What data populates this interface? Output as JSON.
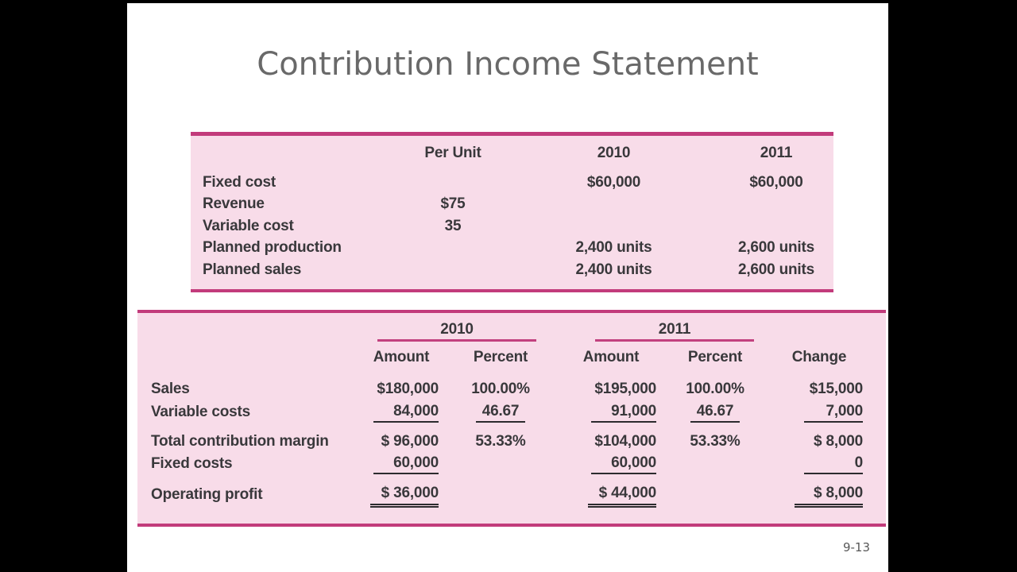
{
  "slide": {
    "title": "Contribution Income Statement",
    "page_number": "9-13"
  },
  "colors": {
    "accent_magenta": "#c23b7b",
    "table_fill": "#f8dce9",
    "table_text": "#39383b",
    "title_gray": "#696969",
    "letterbox": "#000000"
  },
  "table1": {
    "headers": {
      "per_unit": "Per Unit",
      "y2010": "2010",
      "y2011": "2011"
    },
    "rows": [
      {
        "label": "Fixed cost",
        "per_unit": "",
        "y2010": "$60,000",
        "y2011": "$60,000"
      },
      {
        "label": "Revenue",
        "per_unit": "$75",
        "y2010": "",
        "y2011": ""
      },
      {
        "label": "Variable cost",
        "per_unit": "35",
        "y2010": "",
        "y2011": ""
      },
      {
        "label": "Planned production",
        "per_unit": "",
        "y2010": "2,400 units",
        "y2011": "2,600 units"
      },
      {
        "label": "Planned sales",
        "per_unit": "",
        "y2010": "2,400 units",
        "y2011": "2,600 units"
      }
    ]
  },
  "table2": {
    "group_headers": {
      "y2010": "2010",
      "y2011": "2011"
    },
    "column_headers": {
      "amount_2010": "Amount",
      "percent_2010": "Percent",
      "amount_2011": "Amount",
      "percent_2011": "Percent",
      "change": "Change"
    },
    "rows": [
      {
        "label": "Sales",
        "amount_2010": "$180,000",
        "percent_2010": "100.00%",
        "amount_2011": "$195,000",
        "percent_2011": "100.00%",
        "change": "$15,000"
      },
      {
        "label": "Variable costs",
        "amount_2010": "84,000",
        "percent_2010": "46.67",
        "amount_2011": "91,000",
        "percent_2011": "46.67",
        "change": "7,000"
      },
      {
        "label": "Total contribution margin",
        "amount_2010": "$ 96,000",
        "percent_2010": "53.33%",
        "amount_2011": "$104,000",
        "percent_2011": "53.33%",
        "change": "$ 8,000"
      },
      {
        "label": "Fixed costs",
        "amount_2010": "60,000",
        "percent_2010": "",
        "amount_2011": "60,000",
        "percent_2011": "",
        "change": "0"
      },
      {
        "label": "Operating profit",
        "amount_2010": "$ 36,000",
        "percent_2010": "",
        "amount_2011": "$ 44,000",
        "percent_2011": "",
        "change": "$ 8,000"
      }
    ]
  }
}
